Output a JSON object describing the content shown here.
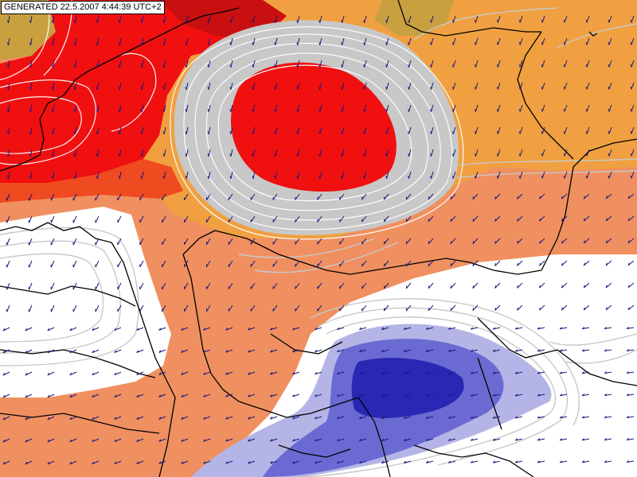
{
  "generated_label": "GENERATED 22.5.2007 4:44:39 UTC+2",
  "colors": {
    "deep_red": "#c81010",
    "red": "#f01010",
    "red_orange": "#f04a20",
    "orange": "#f0a040",
    "salmon": "#f09060",
    "tan": "#c8a040",
    "gray_band": "#c8c8c8",
    "white_area": "#ffffff",
    "light_blue": "#b4b4e6",
    "mid_blue": "#6a6ad2",
    "deep_blue": "#2828b4",
    "isoline_white": "#ffffff",
    "isoline_gray": "#c8c8c8",
    "wind_arrow": "#1a1a80",
    "border_line": "#000000"
  },
  "icons": {
    "wind_arrows": "wind-vector-icon"
  }
}
